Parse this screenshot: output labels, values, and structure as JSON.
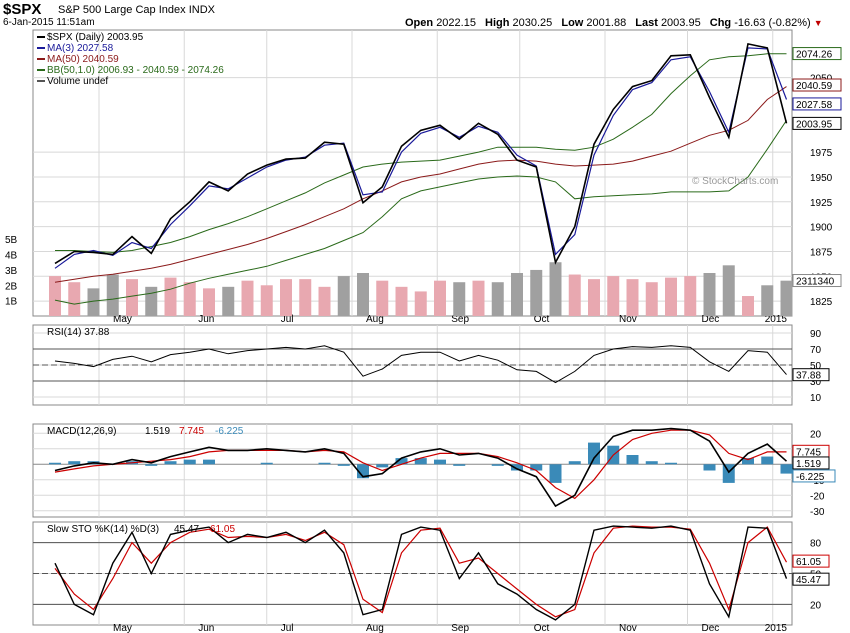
{
  "header": {
    "symbol": "$SPX",
    "name": "S&P 500 Large Cap Index",
    "exchange": "INDX",
    "datetime": "6-Jan-2015 11:51am",
    "open_label": "Open",
    "open": "2022.15",
    "high_label": "High",
    "high": "2030.25",
    "low_label": "Low",
    "low": "2001.88",
    "last_label": "Last",
    "last": "2003.95",
    "chg_label": "Chg",
    "chg": "-16.63 (-0.82%)",
    "chg_arrow": "▼"
  },
  "watermark": "© StockCharts.com",
  "colors": {
    "price": "#000000",
    "ma3": "#1a1a9a",
    "ma50": "#8b1a1a",
    "bb": "#2a6a1a",
    "vol_up": "#e8a8b0",
    "vol_down": "#a0a0a0",
    "rsi": "#000000",
    "macd": "#000000",
    "signal": "#cc0000",
    "hist": "#3a8ab8",
    "sto_k": "#000000",
    "sto_d": "#cc0000",
    "grid": "#d8d8d8"
  },
  "chart_data": [
    {
      "type": "line",
      "panel": "price",
      "legend": [
        "$SPX (Daily) 2003.95",
        "MA(3) 2027.58",
        "MA(50) 2040.59",
        "BB(50,1.0) 2006.93 - 2040.59 - 2074.26",
        "Volume undef"
      ],
      "y_ticks": [
        "1825",
        "1850",
        "1875",
        "1900",
        "1925",
        "1950",
        "1975",
        "2050"
      ],
      "y_range": [
        1810,
        2098
      ],
      "value_labels": [
        "2074.26",
        "2040.59",
        "2027.58",
        "2003.95"
      ],
      "volume_labels": [
        "5B",
        "4B",
        "3B",
        "2B",
        "1B"
      ],
      "volume_last": "2311340",
      "volume_range": [
        0,
        5.6
      ],
      "x": [
        "2014-04-15",
        "2014-04-22",
        "2014-04-29",
        "2014-05-06",
        "2014-05-13",
        "2014-05-20",
        "2014-05-27",
        "2014-06-03",
        "2014-06-10",
        "2014-06-17",
        "2014-06-24",
        "2014-07-01",
        "2014-07-08",
        "2014-07-15",
        "2014-07-22",
        "2014-07-29",
        "2014-08-05",
        "2014-08-12",
        "2014-08-19",
        "2014-08-26",
        "2014-09-02",
        "2014-09-09",
        "2014-09-16",
        "2014-09-23",
        "2014-09-30",
        "2014-10-07",
        "2014-10-14",
        "2014-10-21",
        "2014-10-28",
        "2014-11-04",
        "2014-11-11",
        "2014-11-18",
        "2014-11-25",
        "2014-12-02",
        "2014-12-09",
        "2014-12-16",
        "2014-12-23",
        "2014-12-30",
        "2015-01-06"
      ],
      "series": [
        {
          "name": "$SPX",
          "values": [
            1863,
            1875,
            1874,
            1872,
            1890,
            1873,
            1908,
            1925,
            1945,
            1936,
            1953,
            1962,
            1968,
            1969,
            1985,
            1983,
            1924,
            1940,
            1981,
            1997,
            2002,
            1988,
            2004,
            1993,
            1967,
            1960,
            1864,
            1900,
            1983,
            2018,
            2041,
            2047,
            2072,
            2073,
            2030,
            1990,
            2084,
            2080,
            2004
          ]
        },
        {
          "name": "MA(3)",
          "values": [
            1858,
            1872,
            1876,
            1871,
            1884,
            1878,
            1902,
            1921,
            1941,
            1938,
            1949,
            1960,
            1967,
            1970,
            1982,
            1984,
            1932,
            1935,
            1975,
            1994,
            2000,
            1990,
            2001,
            1995,
            1972,
            1961,
            1872,
            1892,
            1972,
            2012,
            2038,
            2045,
            2068,
            2071,
            2036,
            1995,
            2080,
            2079,
            2028
          ]
        },
        {
          "name": "MA(50)",
          "values": [
            1844,
            1847,
            1850,
            1852,
            1855,
            1858,
            1862,
            1867,
            1872,
            1877,
            1882,
            1888,
            1895,
            1902,
            1910,
            1918,
            1928,
            1936,
            1945,
            1950,
            1953,
            1958,
            1963,
            1966,
            1967,
            1966,
            1963,
            1961,
            1962,
            1963,
            1966,
            1971,
            1976,
            1984,
            1992,
            1997,
            2007,
            2028,
            2041
          ]
        },
        {
          "name": "BB upper",
          "values": [
            1876,
            1876,
            1875,
            1874,
            1876,
            1880,
            1884,
            1890,
            1897,
            1903,
            1910,
            1918,
            1926,
            1934,
            1944,
            1952,
            1960,
            1963,
            1965,
            1966,
            1967,
            1971,
            1975,
            1980,
            1980,
            1980,
            1978,
            1977,
            1980,
            1988,
            2000,
            2013,
            2034,
            2052,
            2068,
            2071,
            2072,
            2074,
            2074
          ]
        },
        {
          "name": "BB lower",
          "values": [
            1826,
            1822,
            1825,
            1827,
            1830,
            1833,
            1837,
            1843,
            1848,
            1852,
            1856,
            1860,
            1866,
            1872,
            1878,
            1886,
            1894,
            1910,
            1928,
            1936,
            1940,
            1944,
            1948,
            1950,
            1951,
            1950,
            1945,
            1928,
            1930,
            1931,
            1932,
            1933,
            1935,
            1935,
            1935,
            1936,
            1950,
            1978,
            2007
          ]
        },
        {
          "name": "Volume (B)",
          "values": [
            2.6,
            2.2,
            1.8,
            2.7,
            2.4,
            1.9,
            2.5,
            2.2,
            1.8,
            1.9,
            2.3,
            2.0,
            2.4,
            2.4,
            1.9,
            2.6,
            2.8,
            2.3,
            1.9,
            1.6,
            2.3,
            2.2,
            2.3,
            2.2,
            2.8,
            3.0,
            3.5,
            2.7,
            2.4,
            2.6,
            2.4,
            2.2,
            2.5,
            2.6,
            2.8,
            3.3,
            1.3,
            2.0,
            2.3
          ]
        }
      ],
      "x_labels": [
        "May",
        "Jun",
        "Jul",
        "Aug",
        "Sep",
        "Oct",
        "Nov",
        "Dec",
        "2015"
      ]
    },
    {
      "type": "line",
      "panel": "rsi",
      "legend": "RSI(14) 37.88",
      "y_range": [
        0,
        100
      ],
      "y_ticks": [
        "90",
        "70",
        "50",
        "30",
        "10"
      ],
      "value_label": "37.88",
      "series": [
        {
          "name": "RSI(14)",
          "values": [
            55,
            52,
            48,
            57,
            61,
            54,
            63,
            66,
            70,
            64,
            68,
            70,
            72,
            70,
            74,
            66,
            36,
            45,
            62,
            66,
            66,
            55,
            62,
            56,
            44,
            42,
            28,
            42,
            62,
            70,
            73,
            72,
            74,
            72,
            54,
            42,
            68,
            66,
            38
          ]
        }
      ]
    },
    {
      "type": "line",
      "panel": "macd",
      "legend": [
        "MACD(12,26,9)",
        "1.519",
        "7.745",
        "-6.225"
      ],
      "y_range": [
        -34,
        26
      ],
      "y_ticks": [
        "20",
        "10",
        "-10",
        "-20",
        "-30"
      ],
      "value_labels": [
        "7.745",
        "1.519",
        "-6.225"
      ],
      "series": [
        {
          "name": "MACD",
          "values": [
            -4,
            -1,
            1,
            0,
            3,
            1,
            5,
            8,
            11,
            9,
            9,
            10,
            9,
            8,
            10,
            7,
            -8,
            -6,
            4,
            8,
            10,
            6,
            7,
            4,
            -3,
            -8,
            -27,
            -20,
            4,
            18,
            22,
            22,
            23,
            22,
            15,
            -5,
            7,
            13,
            2
          ]
        },
        {
          "name": "Signal",
          "values": [
            -5,
            -3,
            -1,
            0,
            1,
            2,
            3,
            5,
            8,
            9,
            9,
            9,
            9,
            8,
            9,
            8,
            1,
            -4,
            0,
            4,
            7,
            7,
            7,
            5,
            1,
            -4,
            -15,
            -22,
            -10,
            6,
            16,
            20,
            22,
            22,
            19,
            7,
            3,
            8,
            8
          ]
        },
        {
          "name": "Histogram",
          "values": [
            1,
            2,
            2,
            0,
            2,
            -1,
            2,
            3,
            3,
            0,
            0,
            1,
            0,
            0,
            1,
            -1,
            -9,
            -2,
            4,
            4,
            3,
            -1,
            0,
            -1,
            -4,
            -4,
            -12,
            2,
            14,
            12,
            6,
            2,
            1,
            0,
            -4,
            -12,
            4,
            5,
            -6
          ]
        }
      ]
    },
    {
      "type": "line",
      "panel": "sto",
      "legend": [
        "Slow STO %K(14) %D(3)",
        "45.47",
        "61.05"
      ],
      "y_range": [
        0,
        100
      ],
      "y_ticks": [
        "80",
        "50",
        "20"
      ],
      "value_labels": [
        "61.05",
        "45.47"
      ],
      "series": [
        {
          "name": "%K",
          "values": [
            60,
            20,
            10,
            60,
            90,
            50,
            88,
            92,
            95,
            80,
            88,
            85,
            90,
            80,
            92,
            70,
            10,
            15,
            88,
            95,
            92,
            45,
            70,
            40,
            30,
            15,
            5,
            20,
            92,
            96,
            95,
            94,
            96,
            92,
            40,
            8,
            95,
            94,
            45
          ]
        },
        {
          "name": "%D",
          "values": [
            55,
            30,
            15,
            45,
            80,
            60,
            80,
            90,
            93,
            85,
            86,
            85,
            88,
            82,
            90,
            78,
            25,
            12,
            70,
            92,
            94,
            60,
            65,
            50,
            35,
            20,
            8,
            15,
            70,
            94,
            96,
            95,
            95,
            93,
            60,
            15,
            80,
            95,
            61
          ]
        }
      ]
    }
  ]
}
